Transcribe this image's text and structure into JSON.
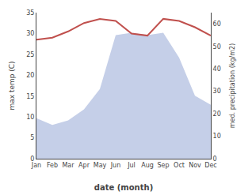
{
  "chart_data": {
    "type": "line",
    "categories": [
      "Jan",
      "Feb",
      "Mar",
      "Apr",
      "May",
      "Jun",
      "Jul",
      "Aug",
      "Sep",
      "Oct",
      "Nov",
      "Dec"
    ],
    "xlabel": "date (month)",
    "ylabel": "max temp (C)",
    "y2label": "med. precipitation (kg/m2)",
    "series": [
      {
        "type": "area",
        "color": "#c5cfe8",
        "axis": "y2",
        "values": [
          18,
          15,
          17,
          22,
          31,
          55,
          56,
          55,
          56,
          45,
          28,
          24
        ]
      },
      {
        "type": "line",
        "color": "#c0504d",
        "values": [
          28.5,
          29.0,
          30.5,
          32.5,
          33.5,
          33.0,
          30.0,
          29.5,
          33.5,
          33.0,
          31.5,
          29.5
        ]
      }
    ],
    "ylim": [
      0,
      35
    ],
    "yticks": [
      0,
      5,
      10,
      15,
      20,
      25,
      30,
      35
    ],
    "y2lim": [
      0,
      65
    ],
    "y2ticks": [
      0,
      10,
      20,
      30,
      40,
      50,
      60
    ],
    "grid": false
  }
}
